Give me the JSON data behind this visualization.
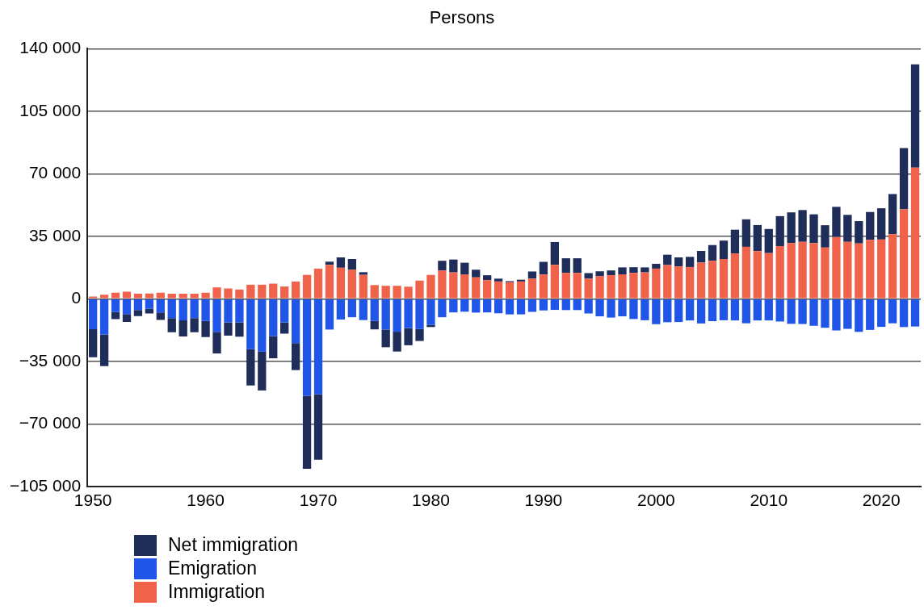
{
  "chart_data": {
    "type": "bar",
    "title": "Persons",
    "stacked": true,
    "grid": "y",
    "legend": "bottom left",
    "categories": [
      "1950",
      null,
      null,
      null,
      null,
      null,
      null,
      null,
      null,
      null,
      "1960",
      null,
      null,
      null,
      null,
      null,
      null,
      null,
      null,
      null,
      "1970",
      null,
      null,
      null,
      null,
      null,
      null,
      null,
      null,
      null,
      "1980",
      null,
      null,
      null,
      null,
      null,
      null,
      null,
      null,
      null,
      "1990",
      null,
      null,
      null,
      null,
      null,
      null,
      null,
      null,
      null,
      "2000",
      null,
      null,
      null,
      null,
      null,
      null,
      null,
      null,
      null,
      "2010",
      null,
      null,
      null,
      null,
      null,
      null,
      null,
      null,
      null,
      "2020",
      null,
      null,
      null
    ],
    "ylim": [
      -105000,
      140000
    ],
    "yticks": [
      {
        "value": -105000,
        "label": "−105 000"
      },
      {
        "value": -70000,
        "label": "−70 000"
      },
      {
        "value": -35000,
        "label": "−35 000"
      },
      {
        "value": 0,
        "label": "0"
      },
      {
        "value": 35000,
        "label": "35 000"
      },
      {
        "value": 70000,
        "label": "70 000"
      },
      {
        "value": 105000,
        "label": "105 000"
      },
      {
        "value": 140000,
        "label": "140 000"
      }
    ],
    "series": [
      {
        "name": "Immigration",
        "color": "#f0634a",
        "values": [
          1300,
          2300,
          3400,
          4000,
          2900,
          3000,
          3400,
          2900,
          2900,
          2900,
          3400,
          6400,
          5800,
          5200,
          7900,
          7900,
          8500,
          6900,
          9700,
          13400,
          16900,
          19000,
          17400,
          16300,
          13400,
          7700,
          7300,
          7300,
          6800,
          10200,
          13400,
          15800,
          14800,
          13700,
          12000,
          10400,
          9700,
          9300,
          9700,
          11300,
          13600,
          19000,
          14500,
          14500,
          11300,
          12600,
          13200,
          13700,
          14500,
          14800,
          16900,
          18900,
          18100,
          17800,
          20300,
          21300,
          22300,
          25400,
          29100,
          26700,
          25600,
          29500,
          31200,
          31900,
          31200,
          28700,
          34600,
          31900,
          31000,
          33000,
          33200,
          36200,
          50100,
          73400
        ]
      },
      {
        "name": "Emigration",
        "color": "#1f55e8",
        "values": [
          -17000,
          -20000,
          -7400,
          -8500,
          -6300,
          -5600,
          -7600,
          -10800,
          -12000,
          -10800,
          -12400,
          -18500,
          -13200,
          -13200,
          -28200,
          -29600,
          -20900,
          -13200,
          -24800,
          -54300,
          -53500,
          -17200,
          -11600,
          -10300,
          -11900,
          -12400,
          -17200,
          -18400,
          -16400,
          -16900,
          -14600,
          -10300,
          -7600,
          -7200,
          -7700,
          -7600,
          -8100,
          -8700,
          -8700,
          -7300,
          -6500,
          -6200,
          -6300,
          -6300,
          -8200,
          -9800,
          -10500,
          -9800,
          -11300,
          -12000,
          -14200,
          -13100,
          -13000,
          -12100,
          -13800,
          -12500,
          -12000,
          -12100,
          -13700,
          -12100,
          -12100,
          -12700,
          -14000,
          -14100,
          -15100,
          -16200,
          -17700,
          -16800,
          -18500,
          -17400,
          -15700,
          -13700,
          -15800,
          -15500
        ]
      },
      {
        "name": "Net immigration",
        "color": "#1f2d5a",
        "values": [
          -15700,
          -17700,
          -4000,
          -4500,
          -3400,
          -2600,
          -4200,
          -7900,
          -9100,
          -7900,
          -9000,
          -12100,
          -7400,
          -8000,
          -20300,
          -21700,
          -12400,
          -6300,
          -15100,
          -40900,
          -36600,
          1800,
          5800,
          6000,
          1500,
          -4700,
          -9900,
          -11100,
          -9600,
          -6700,
          -1200,
          5500,
          7200,
          6500,
          4300,
          2800,
          1600,
          600,
          1000,
          4000,
          7100,
          12800,
          8200,
          8200,
          3100,
          2800,
          2700,
          3900,
          3200,
          2800,
          2700,
          5800,
          5100,
          5700,
          6500,
          8800,
          10300,
          13300,
          15400,
          14600,
          13500,
          16800,
          17200,
          17800,
          16100,
          12500,
          16900,
          15100,
          12500,
          15600,
          17500,
          22500,
          34300,
          57900
        ]
      }
    ]
  }
}
